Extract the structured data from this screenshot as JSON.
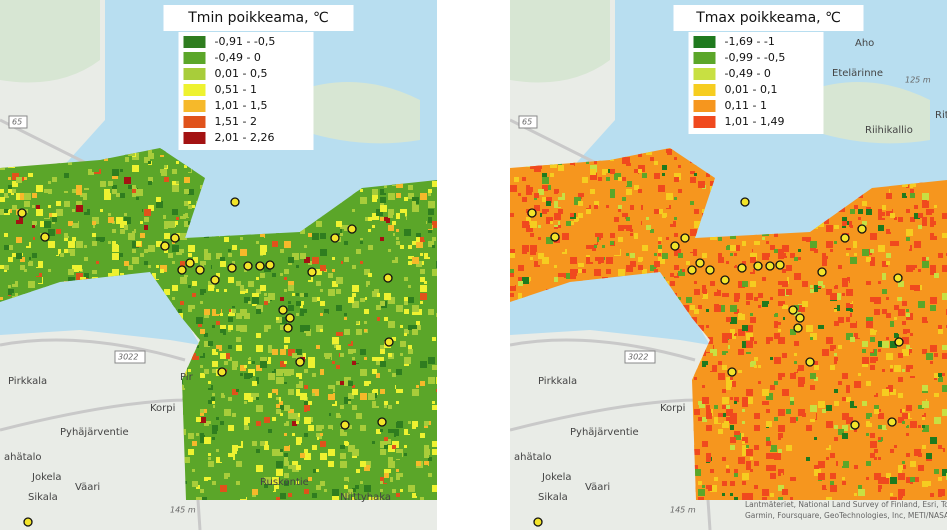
{
  "panels": [
    {
      "title": "Tmin poikkeama, ℃",
      "legend": [
        {
          "label": "-0,91 - -0,5",
          "color": "#2f7d1f"
        },
        {
          "label": "-0,49 - 0",
          "color": "#5ba629"
        },
        {
          "label": "0,01 - 0,5",
          "color": "#a8cd3a"
        },
        {
          "label": "0,51 - 1",
          "color": "#eef230"
        },
        {
          "label": "1,01 - 1,5",
          "color": "#f6b92a"
        },
        {
          "label": "1,51 - 2",
          "color": "#e0521b"
        },
        {
          "label": "2,01 - 2,26",
          "color": "#a31212"
        }
      ],
      "places": [
        "65",
        "3022",
        "Pirkkala",
        "Pir",
        "Korpi",
        "Pyhäjärventie",
        "ahätalo",
        "Jokela",
        "Väari",
        "Sikala",
        "Niittyhaka",
        "Ruskontie",
        "145 m"
      ]
    },
    {
      "title": "Tmax poikkeama, ℃",
      "legend": [
        {
          "label": "-1,69 - -1",
          "color": "#1f7a1e"
        },
        {
          "label": "-0,99 - -0,5",
          "color": "#5ba629"
        },
        {
          "label": "-0,49 - 0",
          "color": "#c8e042"
        },
        {
          "label": "0,01 - 0,1",
          "color": "#f6cd20"
        },
        {
          "label": "0,11 - 1",
          "color": "#f6961e"
        },
        {
          "label": "1,01 - 1,49",
          "color": "#f0491e"
        }
      ],
      "places": [
        "Aho",
        "Etelärinne",
        "125 m",
        "Riihikallio",
        "Rit",
        "65",
        "3022",
        "Pirkkala",
        "Korpi",
        "Pyhäjärventie",
        "ahätalo",
        "Jokela",
        "Väari",
        "Sikala",
        "145 m"
      ],
      "attribution": "Lantmäteriet, National Land Survey of Finland, Esri, TomTom, Garmin, Foursquare, GeoTechnologies, Inc, METI/NASA, USGS"
    }
  ]
}
